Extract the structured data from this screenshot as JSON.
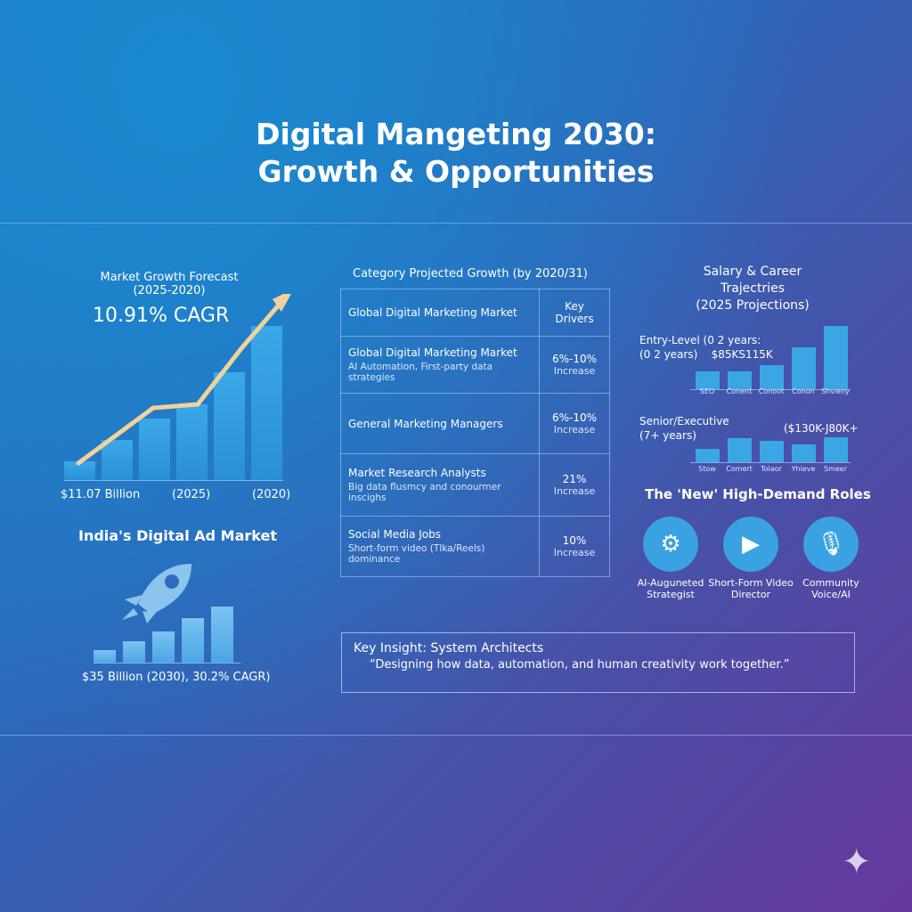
{
  "title": {
    "line1": "Digital Mangeting 2030:",
    "line2": "Growth & Opportunities"
  },
  "forecast": {
    "heading": "Market Growth Forecast",
    "years": "(2025-2020)",
    "cagr": "10.91% CAGR",
    "labels": [
      "$11.07 Billion",
      "(2025)",
      "(2020)"
    ]
  },
  "chart_data": [
    {
      "type": "bar",
      "title": "Market Growth Forecast",
      "values_relative": [
        12,
        26,
        40,
        49,
        70,
        100
      ],
      "trend_line": "arrow, rising",
      "accent": "#f0d29a",
      "bar_color": "#3aa8e8"
    },
    {
      "type": "bar",
      "title": "India's Digital Ad Market",
      "values_relative": [
        22,
        38,
        56,
        79,
        100
      ],
      "bar_color": "#6bbcef"
    },
    {
      "type": "bar",
      "title": "Entry-Level",
      "categories": [
        "SEO",
        "Conent",
        "Conoot",
        "Conon",
        "Shvieny"
      ],
      "values_relative": [
        28,
        28,
        38,
        66,
        100
      ]
    },
    {
      "type": "bar",
      "title": "Senior/Executive",
      "categories": [
        "Stow",
        "Comert",
        "Tolaor",
        "Yhieve",
        "Smeer"
      ],
      "values_relative": [
        54,
        96,
        86,
        71,
        100
      ]
    }
  ],
  "india": {
    "heading": "India's Digital Ad Market",
    "caption": "$35 Billion (2030), 30.2% CAGR)",
    "icon": "rocket-icon"
  },
  "table": {
    "heading": "Category Projected Growth (by 2020/31)",
    "header": [
      "Global Digital Marketing Market",
      "Key Drivers"
    ],
    "rows": [
      {
        "name": "Global Digital Marketing Market",
        "desc": "AI Automation, First-party data strategies",
        "value": "6%-10%",
        "unit": "Increase"
      },
      {
        "name": "General Marketing Managers",
        "desc": "",
        "value": "6%-10%",
        "unit": "Increase"
      },
      {
        "name": "Market Research Analysts",
        "desc": "Big data flusmcy and conourmer inscighs",
        "value": "21%",
        "unit": "Increase"
      },
      {
        "name": "Social Media Jobs",
        "desc": "Short-form video (Tlka/Reels) dominance",
        "value": "10%",
        "unit": "Increase"
      }
    ]
  },
  "salary": {
    "heading": [
      "Salary & Career",
      "Trajectries",
      "(2025 Projections)"
    ],
    "entry": {
      "label1": "Entry-Level (0 2 years:",
      "label2": "(0 2 years)",
      "range": "$85KS115K",
      "bars": [
        "SEO",
        "Conent",
        "Conoot",
        "Conon",
        "Shvieny"
      ]
    },
    "senior": {
      "label1": "Senior/Executive",
      "label2": "(7+ years)",
      "range": "($130K-J80K+",
      "bars": [
        "Stow",
        "Comert",
        "Tolaor",
        "Yhieve",
        "Smeer"
      ]
    }
  },
  "roles": {
    "heading": "The 'New' High-Demand Roles",
    "items": [
      {
        "label1": "AI-Auguneted",
        "label2": "Strategist",
        "icon": "brain-gears-icon"
      },
      {
        "label1": "Short-Form Video",
        "label2": "Director",
        "icon": "video-play-icon"
      },
      {
        "label1": "Community",
        "label2": "Voice/AI",
        "icon": "microphone-search-icon"
      }
    ]
  },
  "insight": {
    "title": "Key Insight: System Architects",
    "quote": "“Designing how data, automation, and human creativity work together.”"
  }
}
